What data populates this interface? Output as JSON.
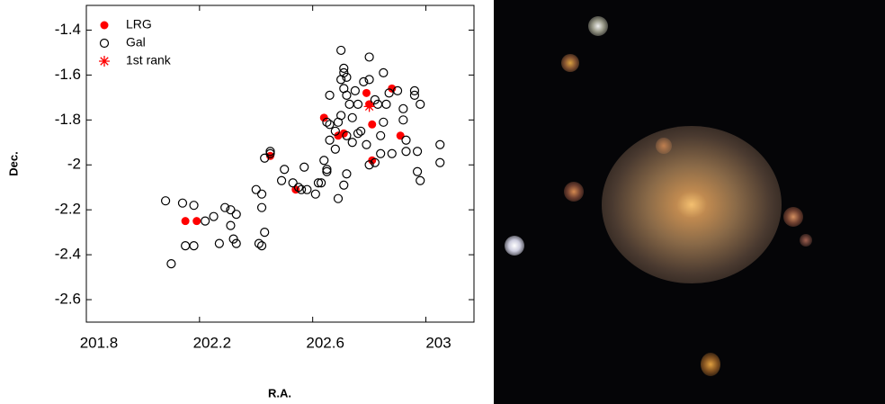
{
  "chart_data": {
    "type": "scatter",
    "xlabel": "R.A.",
    "ylabel": "Dec.",
    "xlim": [
      201.8,
      203.17
    ],
    "ylim": [
      -2.7,
      -1.29
    ],
    "xticks": [
      201.8,
      202.2,
      202.6,
      203.0
    ],
    "yticks": [
      -1.4,
      -1.6,
      -1.8,
      -2.0,
      -2.2,
      -2.4,
      -2.6
    ],
    "legend": "upper left",
    "series": [
      {
        "name": "LRG",
        "color": "#ff0000",
        "marker": "filled-circle",
        "x": [
          202.15,
          202.19,
          202.45,
          202.54,
          202.64,
          202.69,
          202.71,
          202.79,
          202.8,
          202.81,
          202.81,
          202.88,
          202.91
        ],
        "y": [
          -2.25,
          -2.25,
          -1.96,
          -2.11,
          -1.79,
          -1.87,
          -1.86,
          -1.68,
          -1.73,
          -1.82,
          -1.98,
          -1.66,
          -1.87
        ]
      },
      {
        "name": "Gal",
        "color": "#000000",
        "marker": "open-circle",
        "x": [
          202.08,
          202.14,
          202.18,
          202.15,
          202.18,
          202.1,
          202.22,
          202.25,
          202.27,
          202.29,
          202.31,
          202.33,
          202.31,
          202.32,
          202.33,
          202.4,
          202.42,
          202.42,
          202.43,
          202.41,
          202.42,
          202.43,
          202.45,
          202.45,
          202.49,
          202.5,
          202.53,
          202.55,
          202.56,
          202.57,
          202.58,
          202.61,
          202.62,
          202.63,
          202.64,
          202.65,
          202.65,
          202.66,
          202.65,
          202.66,
          202.66,
          202.68,
          202.68,
          202.69,
          202.69,
          202.7,
          202.7,
          202.7,
          202.71,
          202.71,
          202.71,
          202.72,
          202.72,
          202.72,
          202.71,
          202.72,
          202.73,
          202.74,
          202.74,
          202.75,
          202.76,
          202.76,
          202.77,
          202.78,
          202.79,
          202.8,
          202.8,
          202.8,
          202.82,
          202.82,
          202.83,
          202.84,
          202.84,
          202.85,
          202.85,
          202.86,
          202.87,
          202.88,
          202.9,
          202.92,
          202.92,
          202.93,
          202.93,
          202.96,
          202.96,
          202.97,
          202.97,
          202.98,
          202.98,
          203.05,
          203.05
        ],
        "y": [
          -2.16,
          -2.17,
          -2.18,
          -2.36,
          -2.36,
          -2.44,
          -2.25,
          -2.23,
          -2.35,
          -2.19,
          -2.2,
          -2.22,
          -2.27,
          -2.33,
          -2.35,
          -2.11,
          -2.13,
          -2.19,
          -2.3,
          -2.35,
          -2.36,
          -1.97,
          -1.94,
          -1.95,
          -2.07,
          -2.02,
          -2.08,
          -2.1,
          -2.11,
          -2.01,
          -2.11,
          -2.13,
          -2.08,
          -2.08,
          -1.98,
          -2.02,
          -2.03,
          -1.69,
          -1.81,
          -1.82,
          -1.89,
          -1.85,
          -1.93,
          -1.81,
          -2.15,
          -1.49,
          -1.62,
          -1.78,
          -1.57,
          -1.59,
          -1.66,
          -1.61,
          -1.69,
          -1.87,
          -2.09,
          -2.04,
          -1.73,
          -1.79,
          -1.9,
          -1.67,
          -1.86,
          -1.73,
          -1.85,
          -1.63,
          -1.91,
          -1.52,
          -1.62,
          -2.0,
          -1.99,
          -1.71,
          -1.73,
          -1.87,
          -1.95,
          -1.59,
          -1.81,
          -1.73,
          -1.68,
          -1.95,
          -1.67,
          -1.75,
          -1.8,
          -1.89,
          -1.94,
          -1.67,
          -1.69,
          -1.94,
          -2.03,
          -2.07,
          -1.73,
          -1.91,
          -1.99
        ]
      },
      {
        "name": "1st rank",
        "color": "#ff0000",
        "marker": "asterisk",
        "x": [
          202.8
        ],
        "y": [
          -1.74
        ]
      }
    ]
  }
}
